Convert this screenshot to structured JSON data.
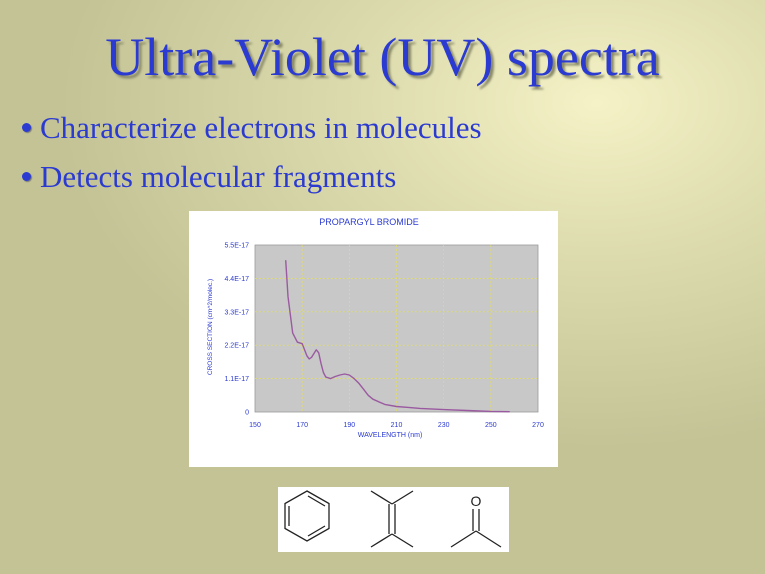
{
  "slide": {
    "title": "Ultra-Violet (UV) spectra",
    "bullets": [
      "Characterize electrons in molecules",
      "Detects molecular fragments"
    ]
  },
  "chart_data": {
    "type": "line",
    "title": "PROPARGYL BROMIDE",
    "xlabel": "WAVELENGTH (nm)",
    "ylabel": "CROSS SECTION (cm^2/molec.)",
    "xlim": [
      150,
      270
    ],
    "ylim": [
      0,
      5.5e-17
    ],
    "xticks": [
      150,
      170,
      190,
      210,
      230,
      250,
      270
    ],
    "yticks": [
      0,
      1.1e-17,
      2.2e-17,
      3.3e-17,
      4.4e-17,
      5.5e-17
    ],
    "xtick_labels": [
      "150",
      "170",
      "190",
      "210",
      "230",
      "250",
      "270"
    ],
    "ytick_labels": [
      "0",
      "1.1E-17",
      "2.2E-17",
      "3.3E-17",
      "4.4E-17",
      "5.5E-17"
    ],
    "grid": true,
    "series": [
      {
        "color": "#9a5aa0",
        "x": [
          163,
          164,
          166,
          168,
          170,
          172,
          173,
          174,
          176,
          177,
          178,
          179,
          180,
          182,
          184,
          186,
          188,
          190,
          192,
          194,
          196,
          198,
          200,
          205,
          210,
          215,
          220,
          230,
          240,
          250,
          258
        ],
        "y": [
          5e-17,
          3.8e-17,
          2.6e-17,
          2.3e-17,
          2.25e-17,
          1.85e-17,
          1.75e-17,
          1.8e-17,
          2.05e-17,
          1.95e-17,
          1.6e-17,
          1.3e-17,
          1.15e-17,
          1.1e-17,
          1.17e-17,
          1.22e-17,
          1.25e-17,
          1.22e-17,
          1.1e-17,
          9.5e-18,
          7.5e-18,
          5.5e-18,
          4.2e-18,
          2.5e-18,
          1.8e-18,
          1.5e-18,
          1.2e-18,
          8e-19,
          5e-19,
          2e-19,
          1e-19
        ]
      }
    ]
  },
  "molecules": {
    "items": [
      "benzene-ring",
      "alkene-double-bond",
      "carbonyl-ketone"
    ],
    "oxygen_label": "O"
  }
}
